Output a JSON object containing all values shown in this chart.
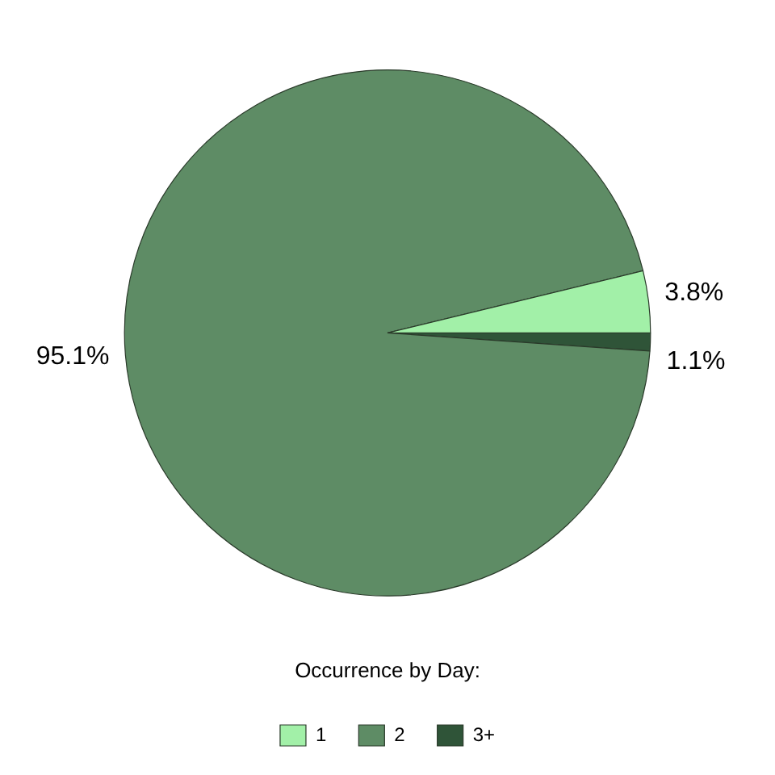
{
  "chart_data": {
    "type": "pie",
    "legend_title": "Occurrence by Day:",
    "legend": "bottom",
    "categories": [
      "1",
      "2",
      "3+"
    ],
    "values": [
      3.8,
      95.1,
      1.1
    ],
    "value_labels": [
      "3.8%",
      "95.1%",
      "1.1%"
    ],
    "colors": [
      "#a2f0a8",
      "#5e8c65",
      "#2f5438"
    ]
  }
}
